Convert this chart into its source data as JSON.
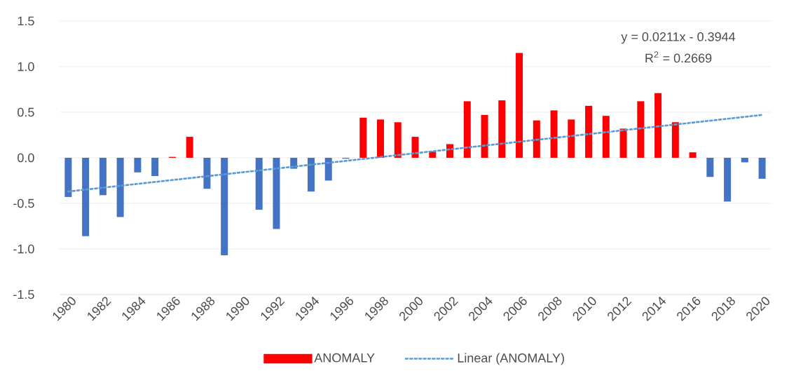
{
  "chart_data": {
    "type": "bar",
    "x": [
      1980,
      1981,
      1982,
      1983,
      1984,
      1985,
      1986,
      1987,
      1988,
      1989,
      1990,
      1991,
      1992,
      1993,
      1994,
      1995,
      1996,
      1997,
      1998,
      1999,
      2000,
      2001,
      2002,
      2003,
      2004,
      2005,
      2006,
      2007,
      2008,
      2009,
      2010,
      2011,
      2012,
      2013,
      2014,
      2015,
      2016,
      2017,
      2018,
      2019,
      2020
    ],
    "xlim": [
      1979.5,
      2020.5
    ],
    "xticks": [
      1980,
      1982,
      1984,
      1986,
      1988,
      1990,
      1992,
      1994,
      1996,
      1998,
      2000,
      2002,
      2004,
      2006,
      2008,
      2010,
      2012,
      2014,
      2016,
      2018,
      2020
    ],
    "ylim": [
      -1.5,
      1.5
    ],
    "yticks": [
      {
        "value": -1.5,
        "label": "-1.5"
      },
      {
        "value": -1.0,
        "label": "-1.0"
      },
      {
        "value": -0.5,
        "label": "-0.5"
      },
      {
        "value": 0,
        "label": "0.0"
      },
      {
        "value": 0.5,
        "label": "0.5"
      },
      {
        "value": 1.0,
        "label": "1.0"
      },
      {
        "value": 1.5,
        "label": "1.5"
      }
    ],
    "grid": "y",
    "legend": "bottom",
    "annotations": [
      "y = 0.0211x - 0.3944",
      "R$^{2}$ = 0.2669"
    ],
    "series": [
      {
        "name": "ANOMALY",
        "color": "#ff0000",
        "values": [
          -0.43,
          -0.86,
          -0.41,
          -0.65,
          -0.16,
          -0.2,
          0.01,
          0.23,
          -0.34,
          -1.07,
          0,
          -0.57,
          -0.78,
          -0.12,
          -0.37,
          -0.25,
          -0.01,
          0.44,
          0.42,
          0.39,
          0.23,
          0.07,
          0.15,
          0.62,
          0.47,
          0.63,
          1.15,
          0.41,
          0.52,
          0.42,
          0.57,
          0.46,
          0.32,
          0.62,
          0.71,
          0.39,
          0.06,
          -0.21,
          -0.48,
          -0.05,
          -0.23
        ],
        "colors": [
          "#4472c4",
          "#4472c4",
          "#4472c4",
          "#4472c4",
          "#4472c4",
          "#4472c4",
          "#ff0000",
          "#ff0000",
          "#4472c4",
          "#4472c4",
          "#4472c4",
          "#4472c4",
          "#4472c4",
          "#4472c4",
          "#4472c4",
          "#4472c4",
          "#4472c4",
          "#ff0000",
          "#ff0000",
          "#ff0000",
          "#ff0000",
          "#ff0000",
          "#ff0000",
          "#ff0000",
          "#ff0000",
          "#ff0000",
          "#ff0000",
          "#ff0000",
          "#ff0000",
          "#ff0000",
          "#ff0000",
          "#ff0000",
          "#ff0000",
          "#ff0000",
          "#ff0000",
          "#ff0000",
          "#ff0000",
          "#4472c4",
          "#4472c4",
          "#4472c4",
          "#4472c4"
        ]
      },
      {
        "name": "Linear (ANOMALY)",
        "type": "line",
        "line_style": "dotted",
        "color": "#5b9bd5",
        "x": [
          1980,
          2020
        ],
        "values": [
          -0.37,
          0.47
        ]
      }
    ]
  }
}
